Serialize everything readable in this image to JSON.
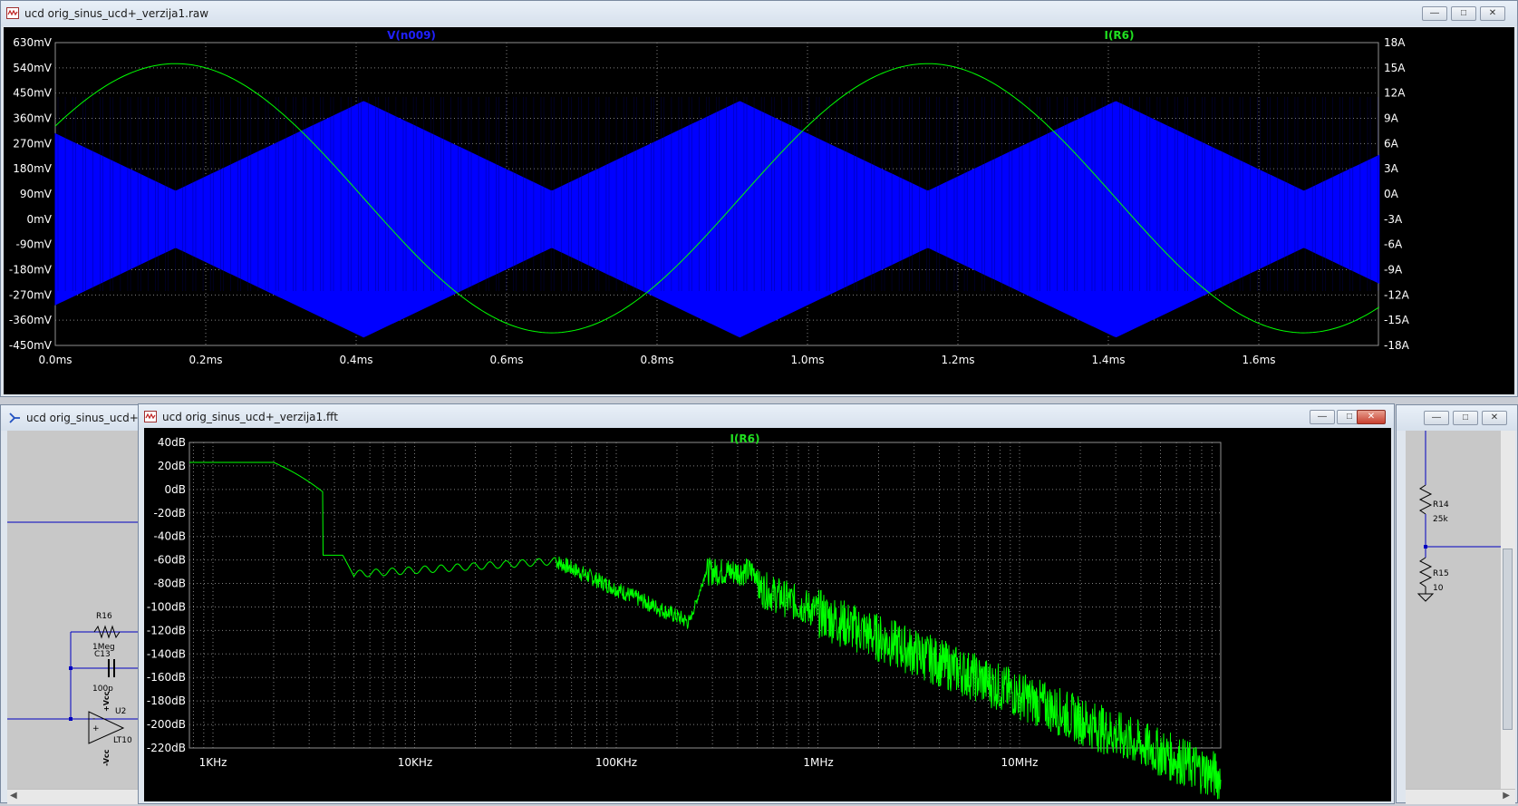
{
  "top_window": {
    "title": "ucd orig_sinus_ucd+_verzija1.raw",
    "trace_labels": [
      "V(n009)",
      "I(R6)"
    ],
    "trace_colors": {
      "voltage": "#0000ff",
      "current": "#00ff00"
    },
    "left_axis_ticks": [
      "630mV",
      "540mV",
      "450mV",
      "360mV",
      "270mV",
      "180mV",
      "90mV",
      "0mV",
      "-90mV",
      "-180mV",
      "-270mV",
      "-360mV",
      "-450mV"
    ],
    "right_axis_ticks": [
      "18A",
      "15A",
      "12A",
      "9A",
      "6A",
      "3A",
      "0A",
      "-3A",
      "-6A",
      "-9A",
      "-12A",
      "-15A",
      "-18A"
    ],
    "x_axis_ticks": [
      "0.0ms",
      "0.2ms",
      "0.4ms",
      "0.6ms",
      "0.8ms",
      "1.0ms",
      "1.2ms",
      "1.4ms",
      "1.6ms"
    ]
  },
  "fft_window": {
    "title": "ucd orig_sinus_ucd+_verzija1.fft",
    "trace_label": "I(R6)",
    "y_axis_ticks": [
      "40dB",
      "20dB",
      "0dB",
      "-20dB",
      "-40dB",
      "-60dB",
      "-80dB",
      "-100dB",
      "-120dB",
      "-140dB",
      "-160dB",
      "-180dB",
      "-200dB",
      "-220dB"
    ],
    "x_axis_ticks": [
      "1KHz",
      "10KHz",
      "100KHz",
      "1MHz",
      "10MHz"
    ]
  },
  "left_schematic_window": {
    "title": "ucd orig_sinus_ucd+_v",
    "components": {
      "r16_name": "R16",
      "r16_value": "1Meg",
      "c13_name": "C13",
      "c13_value": "100p",
      "u2_name": "U2",
      "u2_part": "LT10",
      "vcc_pos": "+Vcc",
      "vcc_neg": "-Vcc"
    }
  },
  "right_schematic_window": {
    "components": {
      "r14_name": "R14",
      "r14_value": "25k",
      "r15_name": "R15",
      "r15_value": "10"
    }
  },
  "icons": [
    "waveform-icon",
    "schematic-icon",
    "minimize-icon",
    "maximize-icon",
    "close-icon"
  ]
}
